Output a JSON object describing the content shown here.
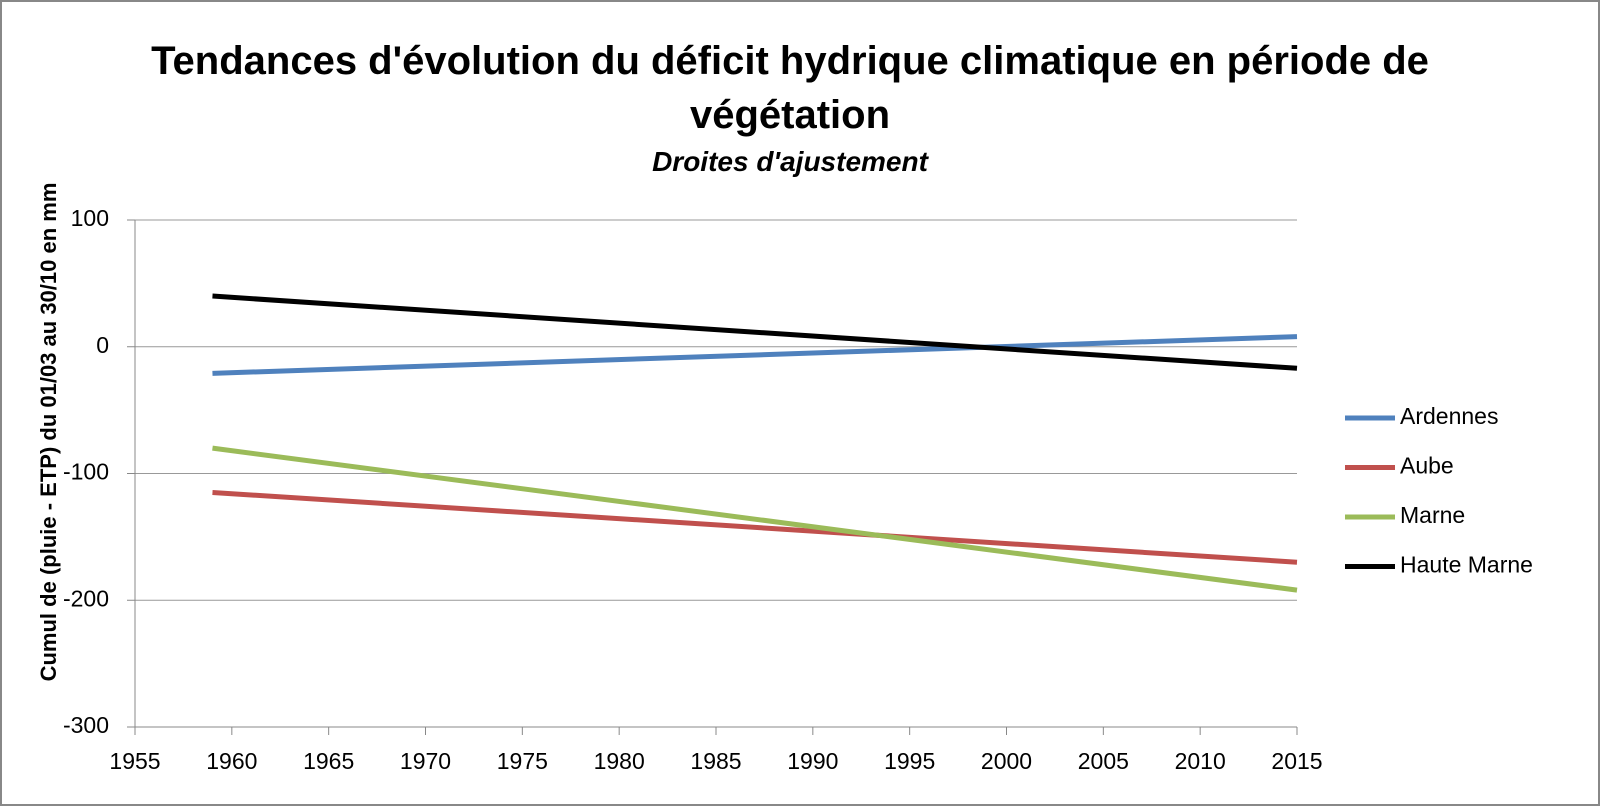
{
  "chart_data": {
    "type": "line",
    "title": "Tendances d'évolution du déficit hydrique climatique en période de végétation",
    "subtitle": "Droites d'ajustement",
    "y_label": "Cumul de (pluie - ETP) du 01/03 au 30/10 en mm",
    "x": [
      1959,
      2015
    ],
    "series": [
      {
        "name": "Ardennes",
        "color": "#4f81bd",
        "values": [
          -21,
          8
        ]
      },
      {
        "name": "Aube",
        "color": "#c0504d",
        "values": [
          -115,
          -170
        ]
      },
      {
        "name": "Marne",
        "color": "#9bbb59",
        "values": [
          -80,
          -192
        ]
      },
      {
        "name": "Haute Marne",
        "color": "#000000",
        "values": [
          40,
          -17
        ]
      }
    ],
    "xlim": [
      1955,
      2015
    ],
    "xticks": [
      1955,
      1960,
      1965,
      1970,
      1975,
      1980,
      1985,
      1990,
      1995,
      2000,
      2005,
      2010,
      2015
    ],
    "ylim": [
      -300,
      100
    ],
    "yticks": [
      -300,
      -200,
      -100,
      0,
      100
    ],
    "grid": true,
    "legend": "right"
  }
}
